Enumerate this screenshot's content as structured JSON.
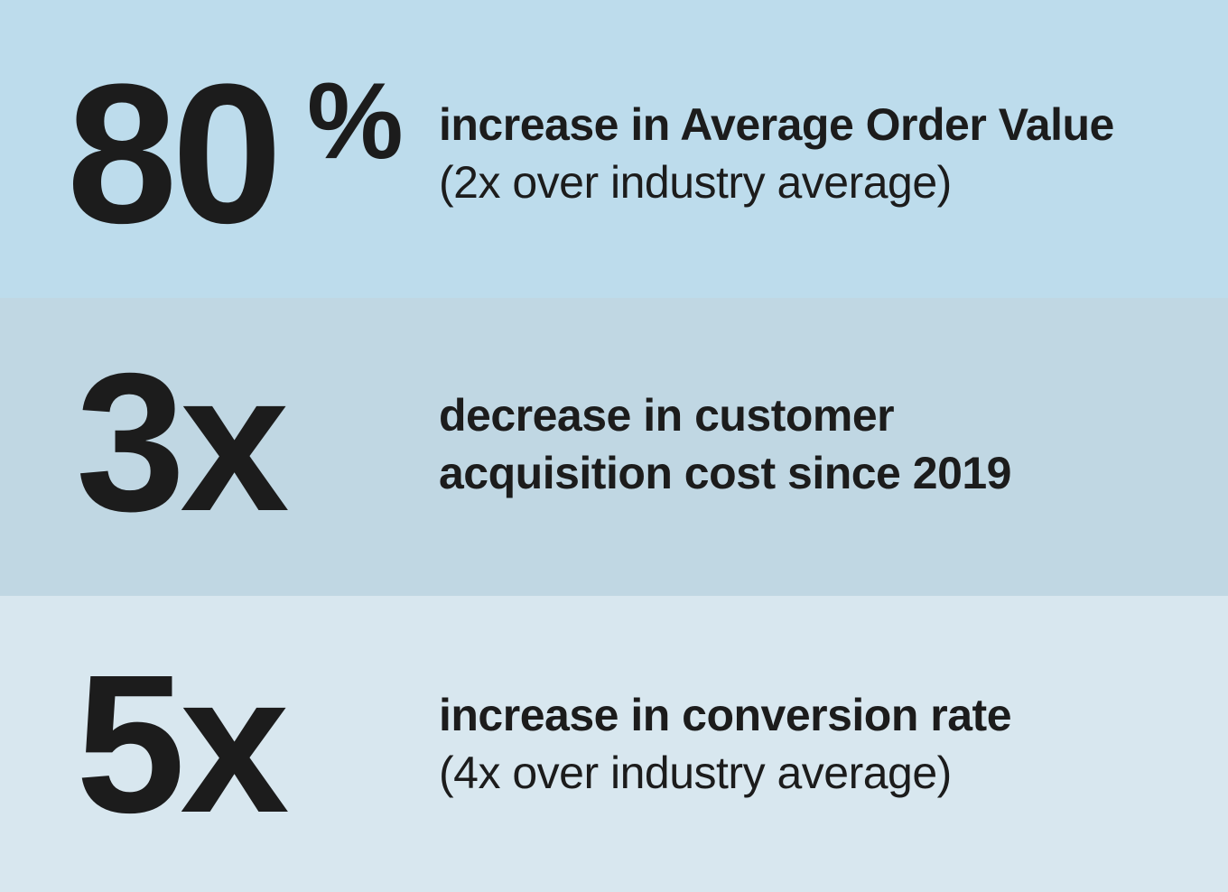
{
  "stats": [
    {
      "value": "80",
      "suffix": "%",
      "headline": "increase in Average Order Value",
      "note": "(2x over industry average)"
    },
    {
      "value": "3x",
      "headline_line1": "decrease in customer",
      "headline_line2": "acquisition cost since 2019"
    },
    {
      "value": "5x",
      "headline": "increase in conversion rate",
      "note": "(4x over industry average)"
    }
  ],
  "colors": {
    "panel_1": "#bddcec",
    "panel_2": "#c0d7e3",
    "panel_3": "#d8e7ef",
    "text": "#1c1c1c"
  }
}
